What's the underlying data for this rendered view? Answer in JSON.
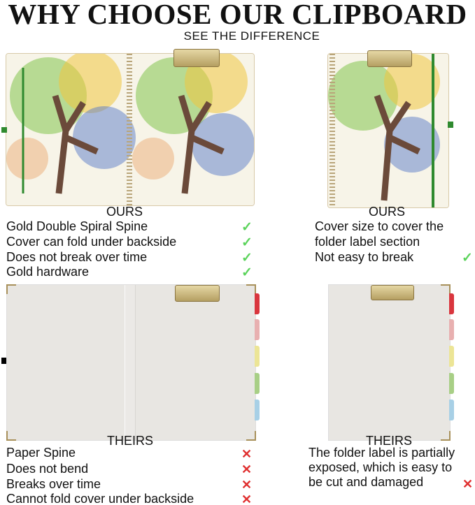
{
  "header": {
    "title": "WHY CHOOSE OUR CLIPBOARD",
    "subtitle": "SEE THE DIFFERENCE"
  },
  "ours": {
    "left": {
      "label": "OURS",
      "features": [
        "Gold Double Spiral Spine",
        "Cover can fold under backside",
        "Does not break over time",
        "Gold hardware"
      ]
    },
    "right": {
      "label": "OURS",
      "features": [
        "Cover size to cover the",
        "folder label section",
        "Not easy to break"
      ]
    }
  },
  "theirs": {
    "left": {
      "label": "THEIRS",
      "features": [
        "Paper Spine",
        "Does not bend",
        "Breaks over time",
        "Cannot fold cover under backside"
      ]
    },
    "right": {
      "label": "THEIRS",
      "features": [
        "The folder label is partially",
        "exposed, which is easy to",
        "be cut and damaged"
      ]
    }
  },
  "icons": {
    "check": "✓",
    "cross": "✕",
    "check_color": "#5bd35b",
    "cross_color": "#e03030"
  },
  "tab_colors": [
    "#d9363e",
    "#e8b0b0",
    "#ece596",
    "#a8cf86",
    "#a8d0e6"
  ]
}
